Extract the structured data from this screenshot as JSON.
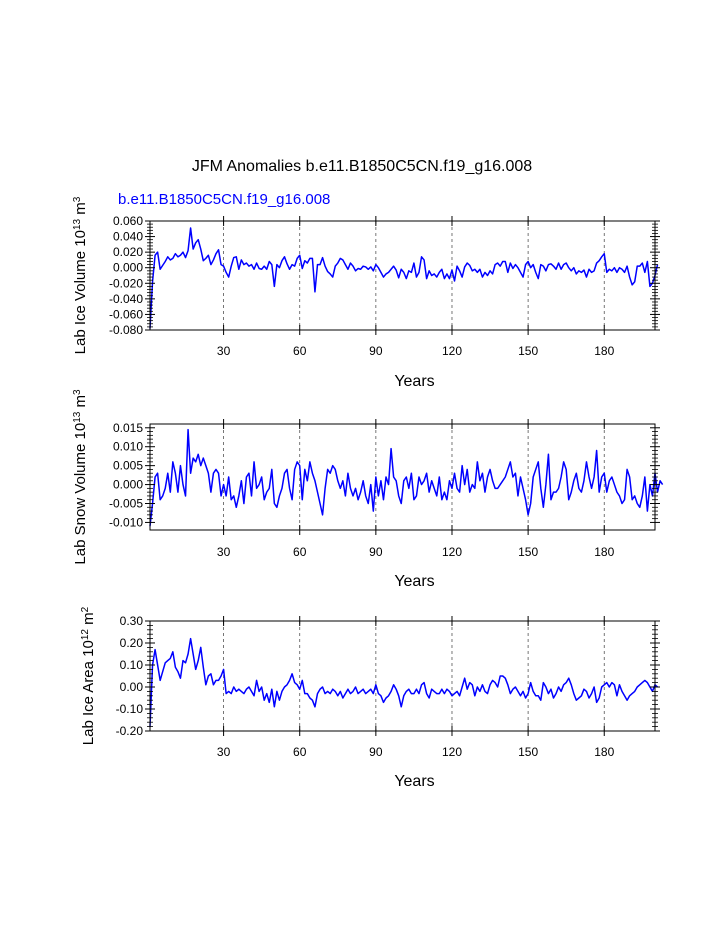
{
  "title": "JFM Anomalies b.e11.B1850C5CN.f19_g16.008",
  "case_label": "b.e11.B1850C5CN.f19_g16.008",
  "colors": {
    "line": "#0000ff",
    "axis": "#000000",
    "grid": "#555555"
  },
  "chart_data": [
    {
      "type": "line",
      "name": "ice-volume",
      "ylabel_main": "Lab Ice Volume 10",
      "ylabel_exp": "13",
      "ylabel_unit": " m",
      "ylabel_unit_exp": "3",
      "xlabel": "Years",
      "xlim": [
        1,
        200
      ],
      "ylim": [
        -0.08,
        0.06
      ],
      "yticks": [
        -0.08,
        -0.06,
        -0.04,
        -0.02,
        0.0,
        0.02,
        0.04,
        0.06
      ],
      "ytick_labels": [
        "-0.080",
        "-0.060",
        "-0.040",
        "-0.020",
        "0.000",
        "0.020",
        "0.040",
        "0.060"
      ],
      "xticks": [
        30,
        60,
        90,
        120,
        150,
        180
      ],
      "xtick_labels": [
        "30",
        "60",
        "90",
        "120",
        "150",
        "180"
      ],
      "values": [
        -0.078,
        -0.018,
        0.016,
        0.02,
        -0.002,
        0.003,
        0.008,
        0.014,
        0.01,
        0.012,
        0.018,
        0.014,
        0.016,
        0.02,
        0.013,
        0.022,
        0.051,
        0.024,
        0.032,
        0.036,
        0.024,
        0.009,
        0.012,
        0.016,
        0.004,
        0.01,
        0.018,
        0.023,
        0.004,
        0.002,
        -0.006,
        -0.012,
        0.002,
        0.013,
        0.014,
        -0.002,
        0.01,
        0.004,
        0.006,
        0.002,
        0.004,
        -0.002,
        0.006,
        -0.001,
        -0.002,
        0.002,
        -0.002,
        0.008,
        0.004,
        -0.024,
        0.004,
        0.0,
        0.009,
        0.014,
        0.005,
        -0.002,
        0.004,
        0.002,
        0.012,
        0.016,
        -0.001,
        0.009,
        0.006,
        0.012,
        0.012,
        -0.031,
        0.004,
        0.004,
        0.013,
        0.002,
        -0.005,
        -0.008,
        -0.012,
        0.002,
        0.006,
        0.012,
        0.01,
        0.004,
        -0.002,
        0.006,
        0.002,
        -0.004,
        -0.001,
        -0.002,
        0.002,
        0.001,
        -0.002,
        0.001,
        -0.004,
        0.004,
        0.0,
        -0.006,
        -0.012,
        -0.008,
        -0.006,
        -0.002,
        0.002,
        -0.003,
        -0.013,
        -0.002,
        -0.006,
        -0.014,
        -0.004,
        -0.006,
        0.006,
        -0.012,
        -0.006,
        0.014,
        0.01,
        -0.014,
        -0.004,
        -0.01,
        -0.008,
        -0.012,
        -0.006,
        -0.002,
        -0.014,
        -0.008,
        -0.014,
        -0.003,
        -0.017,
        0.002,
        -0.004,
        -0.012,
        0.001,
        0.006,
        0.003,
        -0.004,
        -0.002,
        -0.006,
        -0.002,
        -0.012,
        -0.006,
        -0.01,
        -0.004,
        -0.008,
        0.004,
        0.006,
        0.002,
        0.008,
        0.008,
        -0.006,
        0.006,
        -0.001,
        0.004,
        0.0,
        -0.006,
        -0.012,
        0.004,
        0.008,
        0.0,
        0.004,
        -0.006,
        -0.014,
        0.004,
        0.002,
        -0.004,
        0.004,
        0.005,
        0.002,
        -0.002,
        0.006,
        -0.002,
        0.004,
        0.006,
        0.0,
        -0.004,
        0.0,
        -0.008,
        -0.004,
        -0.006,
        -0.003,
        -0.012,
        -0.002,
        -0.006,
        -0.004,
        0.006,
        0.009,
        0.014,
        0.018,
        -0.006,
        -0.002,
        -0.004,
        0.0,
        -0.006,
        0.0,
        -0.002,
        -0.006,
        0.002,
        -0.012,
        -0.022,
        -0.018,
        0.002,
        0.002,
        0.006,
        -0.006,
        0.008,
        -0.024,
        -0.02,
        -0.01,
        0.004
      ]
    },
    {
      "type": "line",
      "name": "snow-volume",
      "ylabel_main": "Lab Snow Volume 10",
      "ylabel_exp": "13",
      "ylabel_unit": " m",
      "ylabel_unit_exp": "3",
      "xlabel": "Years",
      "xlim": [
        1,
        200
      ],
      "ylim": [
        -0.012,
        0.016
      ],
      "yticks": [
        -0.01,
        -0.005,
        0.0,
        0.005,
        0.01,
        0.015
      ],
      "ytick_labels": [
        "-0.010",
        "-0.005",
        "0.000",
        "0.005",
        "0.010",
        "0.015"
      ],
      "xticks": [
        30,
        60,
        90,
        120,
        150,
        180
      ],
      "xtick_labels": [
        "30",
        "60",
        "90",
        "120",
        "150",
        "180"
      ],
      "values": [
        -0.011,
        -0.005,
        0.002,
        0.003,
        -0.004,
        -0.003,
        -0.001,
        0.003,
        -0.002,
        0.006,
        0.003,
        -0.002,
        0.005,
        0.0,
        -0.003,
        0.0145,
        0.003,
        0.007,
        0.006,
        0.008,
        0.005,
        0.007,
        0.005,
        0.003,
        -0.002,
        0.003,
        0.004,
        0.003,
        -0.003,
        0.0,
        -0.003,
        0.002,
        -0.004,
        -0.003,
        -0.006,
        -0.003,
        0.001,
        -0.005,
        0.002,
        0.003,
        -0.003,
        0.006,
        -0.001,
        0.0,
        0.002,
        -0.004,
        -0.002,
        -0.001,
        0.004,
        -0.005,
        -0.006,
        -0.003,
        -0.001,
        0.003,
        0.004,
        -0.001,
        -0.004,
        0.004,
        0.006,
        0.005,
        -0.004,
        0.004,
        0.001,
        0.006,
        0.003,
        0.001,
        -0.002,
        -0.005,
        -0.008,
        -0.001,
        0.004,
        0.003,
        0.005,
        0.004,
        0.001,
        -0.001,
        0.001,
        -0.003,
        0.003,
        -0.001,
        -0.003,
        -0.001,
        -0.004,
        -0.002,
        0.001,
        -0.003,
        -0.005,
        0.0,
        -0.007,
        0.002,
        -0.003,
        0.001,
        -0.004,
        0.002,
        0.0,
        0.0095,
        0.002,
        0.001,
        -0.003,
        -0.005,
        0.001,
        0.002,
        -0.001,
        0.003,
        -0.004,
        -0.003,
        0.002,
        0.0,
        0.001,
        0.003,
        -0.002,
        0.001,
        -0.001,
        -0.003,
        0.002,
        -0.004,
        -0.002,
        -0.004,
        0.001,
        -0.001,
        0.003,
        -0.001,
        -0.002,
        0.005,
        0.0,
        0.004,
        -0.002,
        0.0,
        -0.001,
        0.006,
        0.001,
        0.003,
        -0.002,
        0.002,
        0.004,
        0.001,
        -0.001,
        -0.001,
        0.0,
        0.001,
        0.002,
        0.004,
        0.006,
        0.002,
        0.003,
        -0.003,
        0.002,
        -0.001,
        -0.004,
        -0.008,
        -0.005,
        0.002,
        0.004,
        0.006,
        -0.001,
        -0.006,
        0.0,
        0.008,
        -0.004,
        -0.002,
        -0.002,
        -0.001,
        0.002,
        0.006,
        0.004,
        -0.004,
        -0.002,
        0.001,
        0.003,
        -0.001,
        -0.002,
        0.001,
        0.006,
        0.002,
        -0.001,
        0.002,
        0.009,
        -0.002,
        0.002,
        0.003,
        -0.002,
        0.001,
        0.002,
        0.0,
        -0.002,
        -0.003,
        -0.005,
        -0.004,
        0.004,
        0.002,
        -0.004,
        -0.003,
        -0.005,
        -0.006,
        -0.003,
        0.002,
        -0.007,
        0.0,
        -0.003,
        0.003,
        -0.002,
        0.001,
        0.0
      ]
    },
    {
      "type": "line",
      "name": "ice-area",
      "ylabel_main": "Lab Ice Area 10",
      "ylabel_exp": "12",
      "ylabel_unit": " m",
      "ylabel_unit_exp": "2",
      "xlabel": "Years",
      "xlim": [
        1,
        200
      ],
      "ylim": [
        -0.2,
        0.3
      ],
      "yticks": [
        -0.2,
        -0.1,
        0.0,
        0.1,
        0.2,
        0.3
      ],
      "ytick_labels": [
        "-0.20",
        "-0.10",
        "0.00",
        "0.10",
        "0.20",
        "0.30"
      ],
      "xticks": [
        30,
        60,
        90,
        120,
        150,
        180
      ],
      "xtick_labels": [
        "30",
        "60",
        "90",
        "120",
        "150",
        "180"
      ],
      "values": [
        -0.18,
        0.1,
        0.17,
        0.1,
        0.03,
        0.07,
        0.11,
        0.12,
        0.13,
        0.16,
        0.09,
        0.07,
        0.04,
        0.12,
        0.11,
        0.15,
        0.22,
        0.15,
        0.08,
        0.12,
        0.18,
        0.09,
        0.01,
        0.05,
        0.06,
        0.01,
        0.03,
        0.03,
        0.05,
        0.08,
        -0.03,
        -0.02,
        -0.03,
        0.0,
        -0.02,
        -0.01,
        -0.02,
        -0.03,
        -0.01,
        0.0,
        -0.02,
        -0.04,
        0.03,
        -0.02,
        0.0,
        -0.06,
        -0.03,
        -0.07,
        -0.01,
        -0.09,
        -0.02,
        -0.06,
        -0.02,
        0.0,
        0.01,
        0.03,
        0.06,
        0.02,
        0.01,
        -0.01,
        0.03,
        -0.03,
        -0.03,
        -0.05,
        -0.06,
        -0.09,
        -0.03,
        -0.01,
        0.0,
        -0.03,
        -0.02,
        -0.03,
        -0.01,
        -0.02,
        -0.04,
        -0.02,
        -0.05,
        -0.03,
        -0.01,
        -0.03,
        -0.02,
        0.0,
        -0.03,
        -0.02,
        -0.01,
        -0.03,
        -0.02,
        -0.01,
        -0.03,
        0.01,
        -0.03,
        -0.04,
        -0.07,
        -0.05,
        -0.04,
        -0.02,
        0.01,
        -0.01,
        -0.04,
        -0.09,
        -0.04,
        -0.02,
        -0.01,
        -0.03,
        -0.03,
        -0.01,
        -0.03,
        0.01,
        0.02,
        -0.03,
        -0.05,
        -0.01,
        -0.02,
        -0.03,
        -0.03,
        -0.01,
        -0.03,
        -0.01,
        -0.02,
        -0.04,
        -0.03,
        -0.02,
        -0.04,
        0.0,
        0.04,
        -0.01,
        0.02,
        0.01,
        -0.04,
        0.0,
        -0.02,
        0.01,
        -0.02,
        -0.03,
        0.01,
        0.03,
        0.02,
        0.0,
        0.05,
        0.05,
        0.04,
        0.01,
        -0.03,
        -0.01,
        0.0,
        -0.02,
        -0.04,
        -0.02,
        -0.05,
        -0.03,
        0.02,
        -0.02,
        -0.04,
        -0.04,
        -0.06,
        0.02,
        0.0,
        -0.03,
        -0.01,
        -0.05,
        -0.03,
        0.0,
        -0.02,
        0.01,
        0.02,
        0.04,
        0.01,
        -0.03,
        -0.06,
        -0.05,
        -0.04,
        -0.01,
        -0.02,
        -0.05,
        -0.03,
        0.0,
        -0.07,
        -0.05,
        0.0,
        0.01,
        0.02,
        0.0,
        0.02,
        0.01,
        -0.04,
        0.01,
        -0.02,
        -0.04,
        -0.06,
        -0.04,
        -0.03,
        -0.02,
        0.0,
        0.01,
        0.02,
        0.03,
        0.02,
        0.0,
        -0.02,
        0.01,
        0.0
      ]
    }
  ]
}
